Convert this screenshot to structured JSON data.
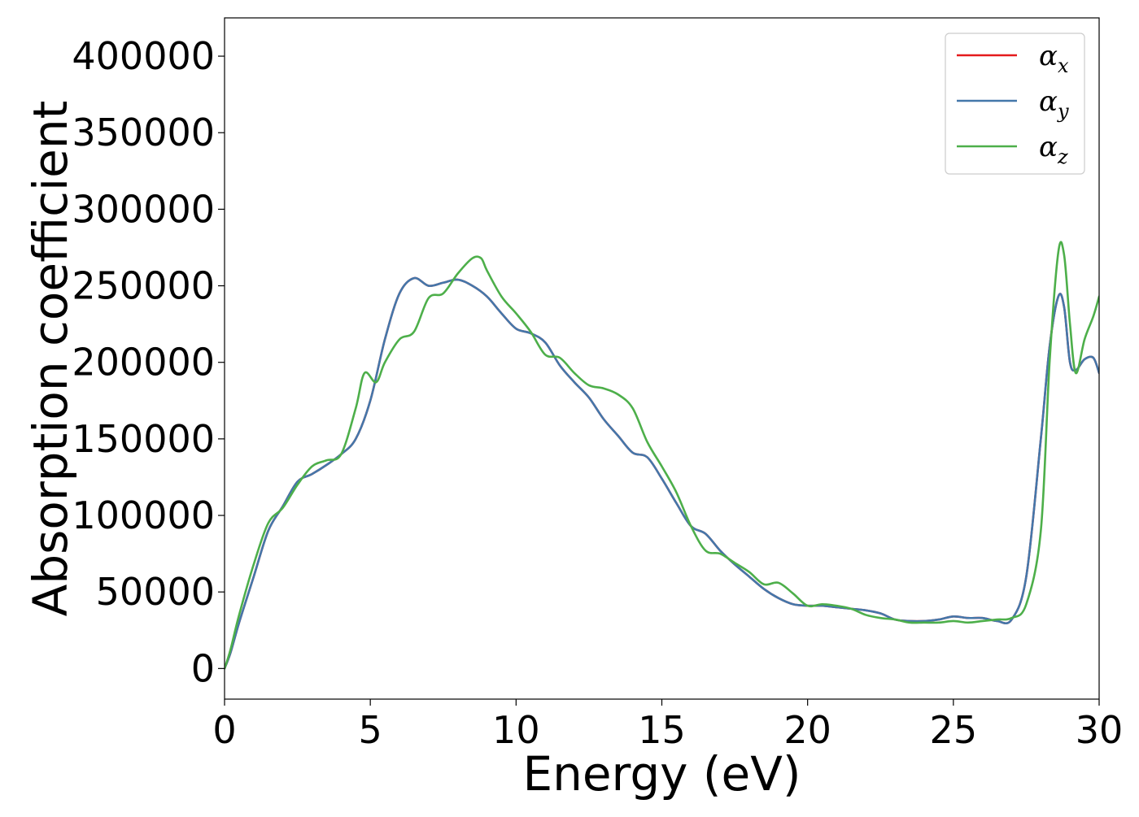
{
  "chart_data": {
    "type": "line",
    "xlabel": "Energy (eV)",
    "ylabel": "Absorption coefficient",
    "xlim": [
      0,
      30
    ],
    "ylim": [
      -20000,
      425000
    ],
    "xticks": [
      0,
      5,
      10,
      15,
      20,
      25,
      30
    ],
    "xtick_labels": [
      "0",
      "5",
      "10",
      "15",
      "20",
      "25",
      "30"
    ],
    "yticks": [
      0,
      50000,
      100000,
      150000,
      200000,
      250000,
      300000,
      350000,
      400000
    ],
    "ytick_labels": [
      "0",
      "50000",
      "100000",
      "150000",
      "200000",
      "250000",
      "300000",
      "350000",
      "400000"
    ],
    "grid": false,
    "legend_position": "top-right",
    "series": [
      {
        "name": "α_x",
        "label_main": "α",
        "label_sub": "x",
        "color": "#e41a1c",
        "x": [
          0,
          0.2,
          0.5,
          1,
          1.5,
          2,
          2.5,
          3,
          3.5,
          4,
          4.5,
          5,
          5.5,
          6,
          6.5,
          7,
          7.5,
          8,
          8.5,
          9,
          9.5,
          10,
          10.5,
          11,
          11.5,
          12,
          12.5,
          13,
          13.5,
          14,
          14.5,
          15,
          15.5,
          16,
          16.5,
          17,
          17.5,
          18,
          18.5,
          19,
          19.5,
          20,
          20.5,
          21,
          21.5,
          22,
          22.5,
          23,
          23.5,
          24,
          24.5,
          25,
          25.5,
          26,
          26.5,
          27,
          27.5,
          28,
          28.3,
          28.6,
          28.8,
          29,
          29.2,
          29.5,
          29.8,
          30
        ],
        "y": [
          0,
          10000,
          30000,
          60000,
          90000,
          106000,
          122000,
          127000,
          133000,
          140000,
          150000,
          175000,
          215000,
          245000,
          255000,
          250000,
          252000,
          254000,
          250000,
          243000,
          232000,
          222000,
          219000,
          213000,
          198000,
          187000,
          177000,
          163000,
          152000,
          141000,
          138000,
          124000,
          108000,
          93000,
          88000,
          77000,
          68000,
          60000,
          52000,
          46000,
          42000,
          41000,
          41000,
          40000,
          39000,
          38000,
          36000,
          32000,
          31000,
          31000,
          32000,
          34000,
          33000,
          33000,
          31000,
          32000,
          60000,
          150000,
          210000,
          243000,
          236000,
          200000,
          195000,
          202000,
          203000,
          193000
        ]
      },
      {
        "name": "α_y",
        "label_main": "α",
        "label_sub": "y",
        "color": "#4477aa",
        "x": [
          0,
          0.2,
          0.5,
          1,
          1.5,
          2,
          2.5,
          3,
          3.5,
          4,
          4.5,
          5,
          5.5,
          6,
          6.5,
          7,
          7.5,
          8,
          8.5,
          9,
          9.5,
          10,
          10.5,
          11,
          11.5,
          12,
          12.5,
          13,
          13.5,
          14,
          14.5,
          15,
          15.5,
          16,
          16.5,
          17,
          17.5,
          18,
          18.5,
          19,
          19.5,
          20,
          20.5,
          21,
          21.5,
          22,
          22.5,
          23,
          23.5,
          24,
          24.5,
          25,
          25.5,
          26,
          26.5,
          27,
          27.5,
          28,
          28.3,
          28.6,
          28.8,
          29,
          29.2,
          29.5,
          29.8,
          30
        ],
        "y": [
          0,
          10000,
          30000,
          60000,
          90000,
          106000,
          122000,
          127000,
          133000,
          140000,
          150000,
          175000,
          215000,
          245000,
          255000,
          250000,
          252000,
          254000,
          250000,
          243000,
          232000,
          222000,
          219000,
          213000,
          198000,
          187000,
          177000,
          163000,
          152000,
          141000,
          138000,
          124000,
          108000,
          93000,
          88000,
          77000,
          68000,
          60000,
          52000,
          46000,
          42000,
          41000,
          41000,
          40000,
          39000,
          38000,
          36000,
          32000,
          31000,
          31000,
          32000,
          34000,
          33000,
          33000,
          31000,
          32000,
          60000,
          150000,
          210000,
          243000,
          236000,
          200000,
          195000,
          202000,
          203000,
          193000
        ]
      },
      {
        "name": "α_z",
        "label_main": "α",
        "label_sub": "z",
        "color": "#4daf4a",
        "x": [
          0,
          0.2,
          0.5,
          1,
          1.5,
          2,
          2.5,
          3,
          3.5,
          4,
          4.5,
          4.8,
          5.2,
          5.5,
          6,
          6.5,
          7,
          7.5,
          8,
          8.5,
          8.8,
          9,
          9.5,
          10,
          10.5,
          11,
          11.5,
          12,
          12.5,
          13,
          13.5,
          14,
          14.5,
          15,
          15.5,
          16,
          16.5,
          17,
          17.5,
          18,
          18.5,
          19,
          19.5,
          20,
          20.5,
          21,
          21.5,
          22,
          22.5,
          23,
          23.5,
          24,
          24.5,
          25,
          25.5,
          26,
          26.5,
          27,
          27.5,
          28,
          28.3,
          28.6,
          28.8,
          29,
          29.2,
          29.5,
          29.8,
          30
        ],
        "y": [
          0,
          12000,
          35000,
          68000,
          95000,
          105000,
          120000,
          132000,
          136000,
          140000,
          170000,
          193000,
          187000,
          200000,
          215000,
          220000,
          242000,
          245000,
          258000,
          268000,
          268000,
          260000,
          243000,
          232000,
          220000,
          205000,
          203000,
          193000,
          185000,
          183000,
          179000,
          170000,
          148000,
          132000,
          115000,
          93000,
          77000,
          75000,
          69000,
          63000,
          55000,
          56000,
          49000,
          41000,
          42000,
          41000,
          39000,
          35000,
          33000,
          32000,
          30000,
          30000,
          30000,
          31000,
          30000,
          31000,
          32000,
          33000,
          42000,
          90000,
          200000,
          272000,
          270000,
          225000,
          193000,
          215000,
          230000,
          243000
        ]
      }
    ]
  }
}
